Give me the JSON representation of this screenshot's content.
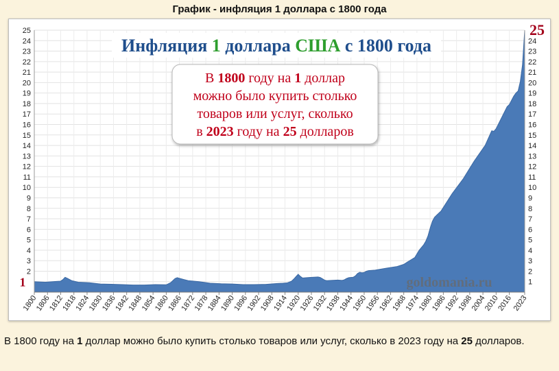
{
  "page": {
    "heading": "График - инфляция 1 доллара с 1800 года",
    "caption": {
      "part1": "В 1800 году на ",
      "num1": "1",
      "part2": " доллар можно было купить столько товаров или услуг, сколько в 2023 году на ",
      "num2": "25",
      "part3": " долларов."
    }
  },
  "chart_data": {
    "type": "area",
    "title": {
      "parts": [
        {
          "text": "Инфляция ",
          "color": "#1f4e8c"
        },
        {
          "text": "1",
          "color": "#2e9e2e"
        },
        {
          "text": " доллара ",
          "color": "#1f4e8c"
        },
        {
          "text": "США",
          "color": "#2e9e2e"
        },
        {
          "text": " с ",
          "color": "#1f4e8c"
        },
        {
          "text": "1800",
          "color": "#1f4e8c"
        },
        {
          "text": " года",
          "color": "#1f4e8c"
        }
      ]
    },
    "annotation": {
      "lines": [
        [
          {
            "text": "В "
          },
          {
            "text": "1800",
            "bold": true
          },
          {
            "text": " году на "
          },
          {
            "text": "1",
            "bold": true
          },
          {
            "text": " доллар"
          }
        ],
        [
          {
            "text": "можно было купить столько"
          }
        ],
        [
          {
            "text": "товаров или услуг, сколько"
          }
        ],
        [
          {
            "text": "в "
          },
          {
            "text": "2023",
            "bold": true
          },
          {
            "text": " году на "
          },
          {
            "text": "25",
            "bold": true
          },
          {
            "text": " долларов"
          }
        ]
      ],
      "color": "#c0001a"
    },
    "start_label": "1",
    "end_label": "25",
    "watermark": "goldomania.ru",
    "fill_color": "#4a7ab7",
    "label_color": "#a3001a",
    "ylim": [
      0,
      25
    ],
    "yticks": [
      1,
      2,
      3,
      4,
      5,
      6,
      7,
      8,
      9,
      10,
      11,
      12,
      13,
      14,
      15,
      16,
      17,
      18,
      19,
      20,
      21,
      22,
      23,
      24,
      25
    ],
    "xlim": [
      1800,
      2023
    ],
    "xticks": [
      1800,
      1806,
      1812,
      1818,
      1824,
      1830,
      1836,
      1842,
      1848,
      1854,
      1860,
      1866,
      1872,
      1878,
      1884,
      1890,
      1896,
      1902,
      1908,
      1914,
      1920,
      1926,
      1932,
      1938,
      1944,
      1950,
      1956,
      1962,
      1968,
      1974,
      1980,
      1986,
      1992,
      1998,
      2004,
      2010,
      2016,
      2023
    ],
    "grid": true,
    "x": [
      1800,
      1805,
      1810,
      1812,
      1813,
      1814,
      1815,
      1817,
      1820,
      1825,
      1830,
      1835,
      1840,
      1845,
      1850,
      1855,
      1860,
      1862,
      1864,
      1865,
      1866,
      1868,
      1870,
      1875,
      1880,
      1885,
      1890,
      1895,
      1900,
      1905,
      1910,
      1913,
      1915,
      1917,
      1918,
      1919,
      1920,
      1921,
      1922,
      1925,
      1929,
      1930,
      1931,
      1932,
      1933,
      1935,
      1938,
      1940,
      1941,
      1942,
      1943,
      1945,
      1946,
      1947,
      1948,
      1949,
      1950,
      1951,
      1952,
      1955,
      1960,
      1965,
      1968,
      1970,
      1973,
      1974,
      1975,
      1977,
      1978,
      1979,
      1980,
      1981,
      1982,
      1985,
      1990,
      1995,
      2000,
      2005,
      2008,
      2009,
      2010,
      2015,
      2016,
      2018,
      2019,
      2020,
      2021,
      2022,
      2023
    ],
    "values": [
      1.0,
      0.95,
      1.02,
      1.05,
      1.2,
      1.42,
      1.32,
      1.1,
      0.95,
      0.9,
      0.78,
      0.75,
      0.72,
      0.68,
      0.68,
      0.72,
      0.7,
      0.9,
      1.3,
      1.38,
      1.32,
      1.2,
      1.1,
      1.0,
      0.85,
      0.8,
      0.78,
      0.72,
      0.72,
      0.74,
      0.82,
      0.85,
      0.88,
      1.05,
      1.25,
      1.48,
      1.7,
      1.5,
      1.35,
      1.4,
      1.45,
      1.4,
      1.28,
      1.15,
      1.1,
      1.12,
      1.15,
      1.12,
      1.18,
      1.3,
      1.38,
      1.42,
      1.55,
      1.78,
      1.9,
      1.85,
      1.88,
      2.0,
      2.05,
      2.1,
      2.28,
      2.45,
      2.65,
      2.92,
      3.3,
      3.65,
      4.0,
      4.5,
      4.85,
      5.35,
      6.1,
      6.75,
      7.15,
      7.75,
      9.4,
      10.8,
      12.5,
      14.0,
      15.4,
      15.35,
      15.6,
      17.7,
      17.9,
      18.7,
      19.0,
      19.2,
      20.1,
      21.7,
      25.0
    ]
  }
}
